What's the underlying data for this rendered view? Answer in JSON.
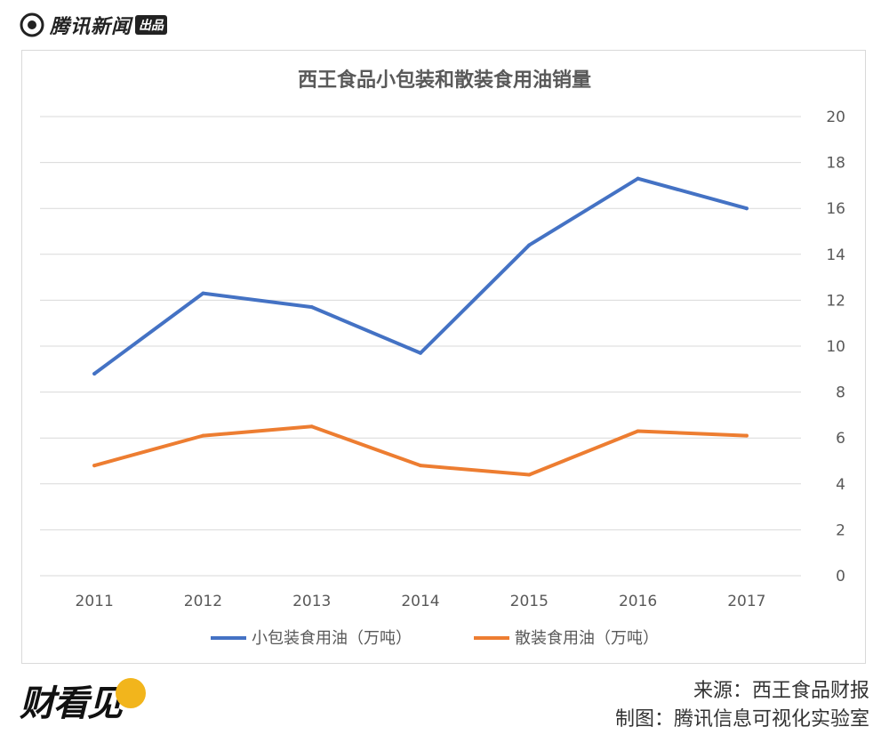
{
  "header": {
    "brand_name": "腾讯新闻",
    "brand_badge": "出品"
  },
  "footer": {
    "logo_text": "财看见",
    "source": "来源：西王食品财报",
    "credit": "制图：腾讯信息可视化实验室"
  },
  "colors": {
    "series_1": "#4472c4",
    "series_2": "#ed7d31",
    "grid": "#d9d9d9",
    "text": "#595959"
  },
  "chart_data": {
    "type": "line",
    "title": "西王食品小包装和散装食用油销量",
    "categories": [
      "2011",
      "2012",
      "2013",
      "2014",
      "2015",
      "2016",
      "2017"
    ],
    "series": [
      {
        "name": "小包装食用油（万吨）",
        "values": [
          8.8,
          12.3,
          11.7,
          9.7,
          14.4,
          17.3,
          16.0
        ]
      },
      {
        "name": "散装食用油（万吨）",
        "values": [
          4.8,
          6.1,
          6.5,
          4.8,
          4.4,
          6.3,
          6.1
        ]
      }
    ],
    "ylim": [
      0,
      20
    ],
    "yticks": [
      0,
      2,
      4,
      6,
      8,
      10,
      12,
      14,
      16,
      18,
      20
    ],
    "yaxis_position": "right",
    "grid": true,
    "legend_position": "bottom"
  }
}
